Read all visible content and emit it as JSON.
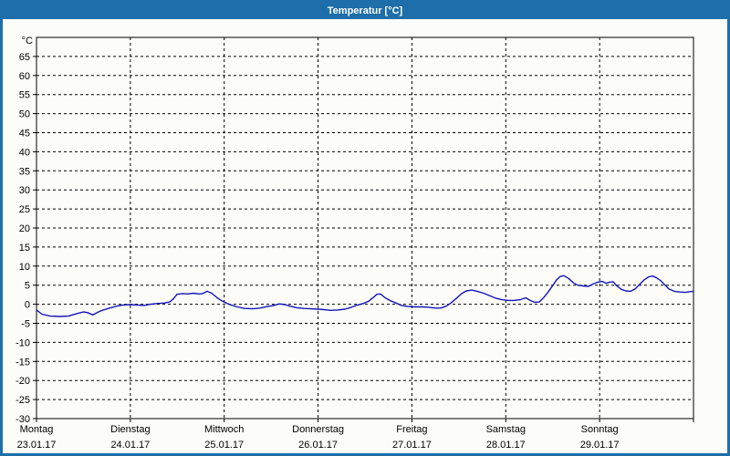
{
  "window": {
    "title": "Temperatur [°C]"
  },
  "colors": {
    "accent": "#1d6ea9",
    "line": "#1414b8",
    "grid": "#000000",
    "background": "#fcfdf8",
    "text": "#000000"
  },
  "chart_data": {
    "type": "line",
    "title": "Temperatur [°C]",
    "unit_label": "°C",
    "ylim": [
      -30,
      70
    ],
    "yticks": [
      -30,
      -25,
      -20,
      -15,
      -10,
      -5,
      0,
      5,
      10,
      15,
      20,
      25,
      30,
      35,
      40,
      45,
      50,
      55,
      60,
      65
    ],
    "grid": "dashed",
    "legend": "none",
    "x_unit": "days_since_monday_00:00",
    "xlim_days": [
      0,
      7
    ],
    "days": [
      {
        "weekday": "Montag",
        "date": "23.01.17"
      },
      {
        "weekday": "Dienstag",
        "date": "24.01.17"
      },
      {
        "weekday": "Mittwoch",
        "date": "25.01.17"
      },
      {
        "weekday": "Donnerstag",
        "date": "26.01.17"
      },
      {
        "weekday": "Freitag",
        "date": "27.01.17"
      },
      {
        "weekday": "Samstag",
        "date": "28.01.17"
      },
      {
        "weekday": "Sonntag",
        "date": "29.01.17"
      }
    ],
    "series": [
      {
        "name": "Temperatur",
        "color": "#1414b8",
        "points": [
          [
            0.0,
            -1.5
          ],
          [
            0.058,
            -2.6
          ],
          [
            0.146,
            -3.1
          ],
          [
            0.25,
            -3.2
          ],
          [
            0.34,
            -3.1
          ],
          [
            0.44,
            -2.4
          ],
          [
            0.5,
            -2.0
          ],
          [
            0.545,
            -2.2
          ],
          [
            0.6,
            -2.8
          ],
          [
            0.66,
            -2.0
          ],
          [
            0.7,
            -1.6
          ],
          [
            0.778,
            -1.0
          ],
          [
            0.856,
            -0.5
          ],
          [
            0.924,
            -0.2
          ],
          [
            1.0,
            -0.1
          ],
          [
            1.069,
            -0.2
          ],
          [
            1.147,
            -0.3
          ],
          [
            1.215,
            0.0
          ],
          [
            1.283,
            0.2
          ],
          [
            1.361,
            0.3
          ],
          [
            1.419,
            0.6
          ],
          [
            1.458,
            1.4
          ],
          [
            1.497,
            2.6
          ],
          [
            1.556,
            2.8
          ],
          [
            1.614,
            2.7
          ],
          [
            1.672,
            2.9
          ],
          [
            1.731,
            2.7
          ],
          [
            1.769,
            2.8
          ],
          [
            1.818,
            3.4
          ],
          [
            1.867,
            2.9
          ],
          [
            1.925,
            1.7
          ],
          [
            1.974,
            0.9
          ],
          [
            2.022,
            0.3
          ],
          [
            2.071,
            -0.2
          ],
          [
            2.139,
            -0.7
          ],
          [
            2.217,
            -1.1
          ],
          [
            2.304,
            -1.2
          ],
          [
            2.382,
            -1.0
          ],
          [
            2.46,
            -0.6
          ],
          [
            2.528,
            -0.3
          ],
          [
            2.586,
            0.1
          ],
          [
            2.644,
            -0.1
          ],
          [
            2.703,
            -0.5
          ],
          [
            2.771,
            -0.9
          ],
          [
            2.849,
            -1.1
          ],
          [
            2.926,
            -1.2
          ],
          [
            2.994,
            -1.3
          ],
          [
            3.063,
            -1.4
          ],
          [
            3.131,
            -1.6
          ],
          [
            3.208,
            -1.5
          ],
          [
            3.286,
            -1.3
          ],
          [
            3.354,
            -0.8
          ],
          [
            3.422,
            -0.2
          ],
          [
            3.481,
            0.2
          ],
          [
            3.539,
            0.8
          ],
          [
            3.588,
            1.8
          ],
          [
            3.626,
            2.6
          ],
          [
            3.665,
            2.7
          ],
          [
            3.714,
            1.7
          ],
          [
            3.772,
            0.9
          ],
          [
            3.831,
            0.3
          ],
          [
            3.889,
            -0.3
          ],
          [
            3.957,
            -0.6
          ],
          [
            4.035,
            -0.7
          ],
          [
            4.113,
            -0.7
          ],
          [
            4.181,
            -0.8
          ],
          [
            4.249,
            -1.0
          ],
          [
            4.307,
            -1.0
          ],
          [
            4.365,
            -0.5
          ],
          [
            4.414,
            0.3
          ],
          [
            4.472,
            1.5
          ],
          [
            4.53,
            2.8
          ],
          [
            4.579,
            3.5
          ],
          [
            4.637,
            3.7
          ],
          [
            4.696,
            3.4
          ],
          [
            4.764,
            2.9
          ],
          [
            4.832,
            2.2
          ],
          [
            4.89,
            1.6
          ],
          [
            4.958,
            1.2
          ],
          [
            5.026,
            1.0
          ],
          [
            5.085,
            1.0
          ],
          [
            5.153,
            1.2
          ],
          [
            5.211,
            1.7
          ],
          [
            5.26,
            1.0
          ],
          [
            5.308,
            0.5
          ],
          [
            5.357,
            0.6
          ],
          [
            5.406,
            1.8
          ],
          [
            5.454,
            3.3
          ],
          [
            5.503,
            5.0
          ],
          [
            5.542,
            6.4
          ],
          [
            5.581,
            7.3
          ],
          [
            5.619,
            7.5
          ],
          [
            5.668,
            6.8
          ],
          [
            5.717,
            5.7
          ],
          [
            5.765,
            5.0
          ],
          [
            5.824,
            4.8
          ],
          [
            5.882,
            4.7
          ],
          [
            5.931,
            5.3
          ],
          [
            5.979,
            5.8
          ],
          [
            6.028,
            6.0
          ],
          [
            6.067,
            5.5
          ],
          [
            6.106,
            5.8
          ],
          [
            6.144,
            5.9
          ],
          [
            6.183,
            4.8
          ],
          [
            6.232,
            3.9
          ],
          [
            6.281,
            3.5
          ],
          [
            6.329,
            3.4
          ],
          [
            6.378,
            4.0
          ],
          [
            6.426,
            5.2
          ],
          [
            6.475,
            6.4
          ],
          [
            6.524,
            7.2
          ],
          [
            6.563,
            7.4
          ],
          [
            6.601,
            7.0
          ],
          [
            6.65,
            6.2
          ],
          [
            6.689,
            5.2
          ],
          [
            6.738,
            4.0
          ],
          [
            6.796,
            3.4
          ],
          [
            6.854,
            3.2
          ],
          [
            6.913,
            3.1
          ],
          [
            6.961,
            3.3
          ],
          [
            7.0,
            3.4
          ]
        ]
      }
    ]
  }
}
